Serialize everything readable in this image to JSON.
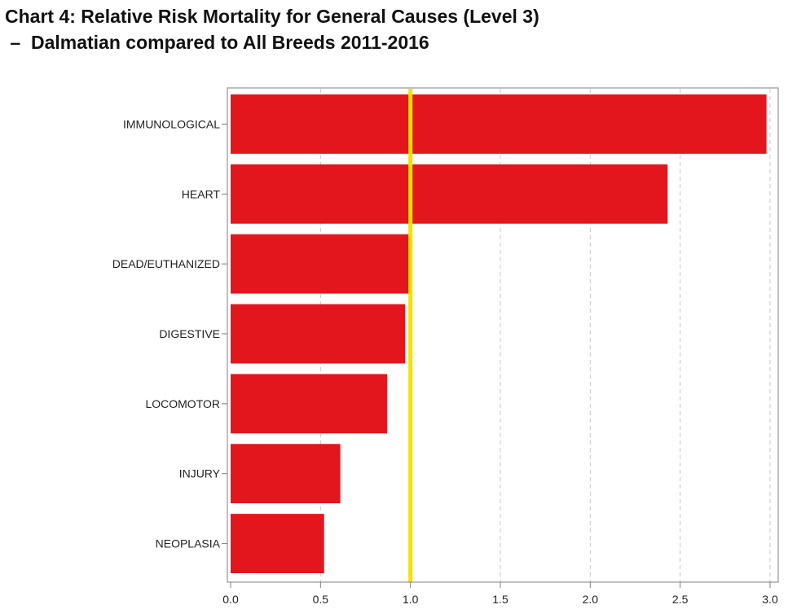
{
  "chart_data": {
    "type": "bar",
    "orientation": "horizontal",
    "title": "Chart 4: Relative Risk Mortality for General Causes (Level 3)",
    "subtitle": " –  Dalmatian compared to All Breeds 2011-2016",
    "xlabel": "",
    "ylabel": "",
    "categories": [
      "IMMUNOLOGICAL",
      "HEART",
      "DEAD/EUTHANIZED",
      "DIGESTIVE",
      "LOCOMOTOR",
      "INJURY",
      "NEOPLASIA"
    ],
    "values": [
      2.98,
      2.43,
      0.99,
      0.97,
      0.87,
      0.61,
      0.52
    ],
    "xlim": [
      0,
      3.0
    ],
    "x_ticks": [
      "0.0",
      "0.5",
      "1.0",
      "1.5",
      "2.0",
      "2.5",
      "3.0"
    ],
    "reference_line": {
      "x": 1.0,
      "color": "#f5e000"
    },
    "grid": "vertical dashed",
    "legend": "none",
    "bar_color": "#e3161e",
    "gridline_color": "#c8c8c8",
    "axis_color": "#7f7f7f"
  }
}
